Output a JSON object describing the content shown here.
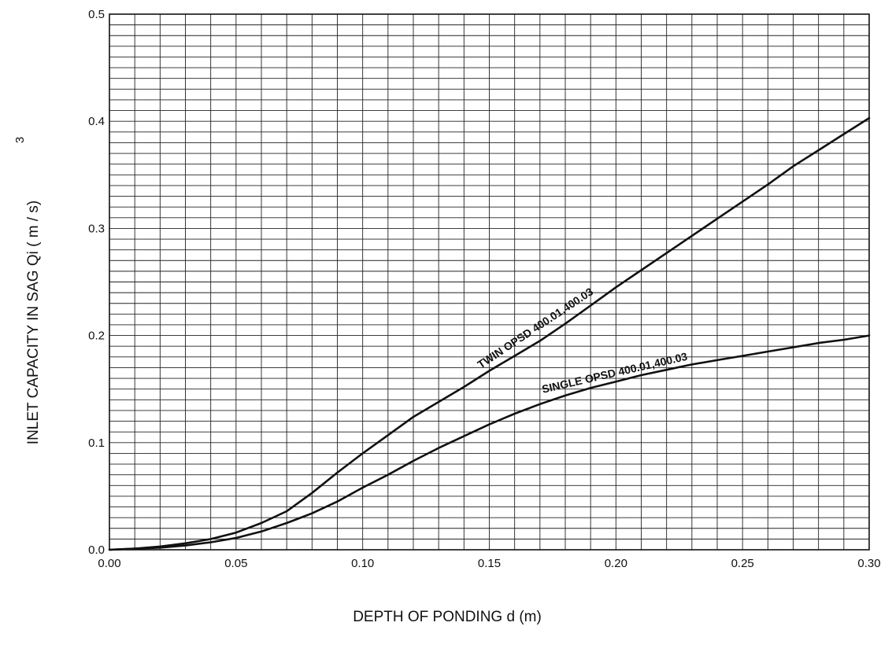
{
  "chart_data": {
    "type": "line",
    "title": "",
    "xlabel": "DEPTH OF PONDING  d (m)",
    "ylabel": "INLET CAPACITY IN SAG   Qi  ( m / s)",
    "ylabel_superscript": "3",
    "xlim": [
      0.0,
      0.3
    ],
    "ylim": [
      0.0,
      0.5
    ],
    "x_ticks": [
      "0.00",
      "0.05",
      "0.10",
      "0.15",
      "0.20",
      "0.25",
      "0.30"
    ],
    "x_tick_values": [
      0.0,
      0.05,
      0.1,
      0.15,
      0.2,
      0.25,
      0.3
    ],
    "y_ticks": [
      "0.0",
      "0.1",
      "0.2",
      "0.3",
      "0.4",
      "0.5"
    ],
    "y_tick_values": [
      0.0,
      0.1,
      0.2,
      0.3,
      0.4,
      0.5
    ],
    "grid": true,
    "grid_x_step": 0.01,
    "grid_y_step": 0.01,
    "series": [
      {
        "name": "TWIN  OPSD  400.01,400.03",
        "x": [
          0.0,
          0.01,
          0.02,
          0.03,
          0.04,
          0.05,
          0.06,
          0.07,
          0.08,
          0.09,
          0.1,
          0.11,
          0.12,
          0.13,
          0.14,
          0.15,
          0.16,
          0.17,
          0.18,
          0.19,
          0.2,
          0.21,
          0.22,
          0.23,
          0.24,
          0.25,
          0.26,
          0.27,
          0.28,
          0.29,
          0.3
        ],
        "values": [
          0.0,
          0.001,
          0.003,
          0.006,
          0.01,
          0.016,
          0.025,
          0.036,
          0.053,
          0.072,
          0.09,
          0.107,
          0.124,
          0.138,
          0.152,
          0.167,
          0.181,
          0.195,
          0.211,
          0.228,
          0.245,
          0.261,
          0.277,
          0.293,
          0.309,
          0.325,
          0.341,
          0.358,
          0.373,
          0.388,
          0.403
        ]
      },
      {
        "name": "SINGLE  OPSD  400.01,400.03",
        "x": [
          0.0,
          0.01,
          0.02,
          0.03,
          0.04,
          0.05,
          0.06,
          0.07,
          0.08,
          0.09,
          0.1,
          0.11,
          0.12,
          0.13,
          0.14,
          0.15,
          0.16,
          0.17,
          0.18,
          0.19,
          0.2,
          0.21,
          0.22,
          0.23,
          0.24,
          0.25,
          0.26,
          0.27,
          0.28,
          0.29,
          0.3
        ],
        "values": [
          0.0,
          0.001,
          0.002,
          0.004,
          0.007,
          0.011,
          0.017,
          0.025,
          0.034,
          0.045,
          0.058,
          0.07,
          0.083,
          0.095,
          0.106,
          0.117,
          0.127,
          0.136,
          0.144,
          0.151,
          0.157,
          0.163,
          0.168,
          0.173,
          0.177,
          0.181,
          0.185,
          0.189,
          0.193,
          0.196,
          0.2
        ]
      }
    ],
    "annotations": [
      {
        "text": "TWIN  OPSD  400.01,400.03",
        "series": 0
      },
      {
        "text": "SINGLE  OPSD  400.01,400.03",
        "series": 1
      }
    ]
  },
  "colors": {
    "line": "#111111",
    "grid": "#222222",
    "background": "#ffffff"
  }
}
